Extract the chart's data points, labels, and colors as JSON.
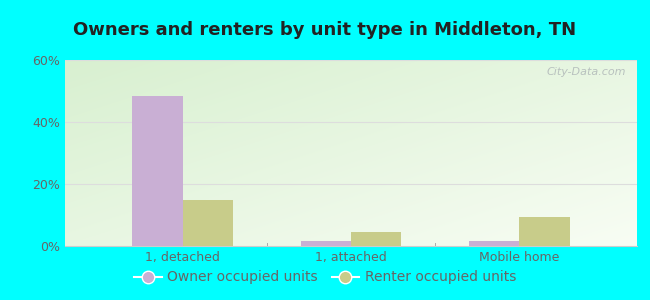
{
  "title": "Owners and renters by unit type in Middleton, TN",
  "categories": [
    "1, detached",
    "1, attached",
    "Mobile home"
  ],
  "owner_values": [
    48.5,
    1.5,
    1.5
  ],
  "renter_values": [
    15.0,
    4.5,
    9.5
  ],
  "owner_color": "#c9afd4",
  "renter_color": "#c8cc8a",
  "ylim": [
    0,
    60
  ],
  "yticks": [
    0,
    20,
    40,
    60
  ],
  "ytick_labels": [
    "0%",
    "20%",
    "40%",
    "60%"
  ],
  "bg_color_topleft": "#c8e8c0",
  "bg_color_bottomright": "#f0faf0",
  "outer_bg": "#00ffff",
  "bar_width": 0.3,
  "title_fontsize": 13,
  "tick_fontsize": 9,
  "legend_fontsize": 10,
  "watermark": "City-Data.com"
}
